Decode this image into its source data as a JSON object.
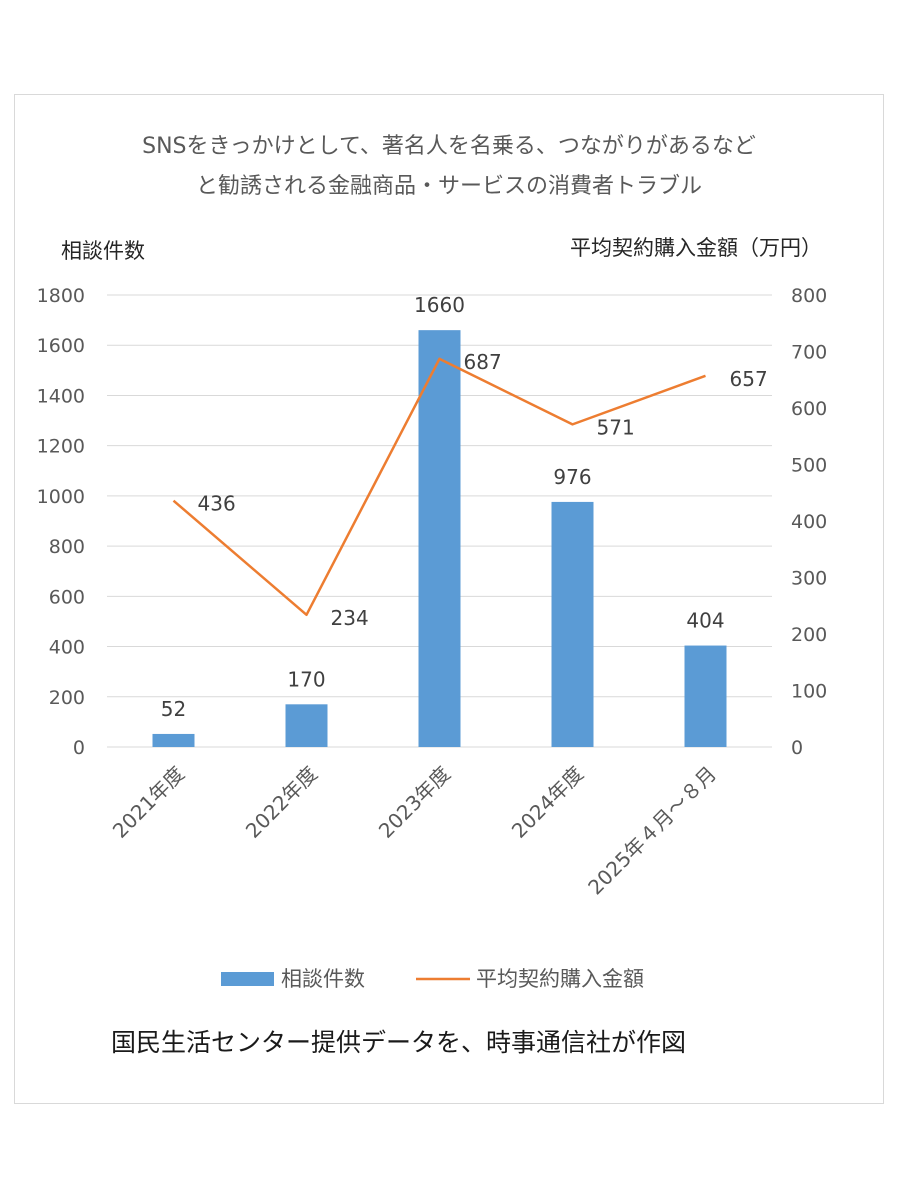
{
  "chart_data": {
    "type": "bar",
    "title": [
      "SNSをきっかけとして、著名人を名乗る、つながりがあるなど",
      "と勧誘される金融商品・サービスの消費者トラブル"
    ],
    "ylabel": "相談件数",
    "y2label": "平均契約購入金額（万円）",
    "categories": [
      "2021年度",
      "2022年度",
      "2023年度",
      "2024年度",
      "2025年４月～８月"
    ],
    "ylim": [
      0,
      1800
    ],
    "y2lim": [
      0,
      800
    ],
    "yticks": [
      0,
      200,
      400,
      600,
      800,
      1000,
      1200,
      1400,
      1600,
      1800
    ],
    "y2ticks": [
      0,
      100,
      200,
      300,
      400,
      500,
      600,
      700,
      800
    ],
    "grid": true,
    "legend_position": "bottom",
    "series": [
      {
        "name": "相談件数",
        "type": "bar",
        "axis": "left",
        "color": "#5b9bd5",
        "values": [
          52,
          170,
          1660,
          976,
          404
        ]
      },
      {
        "name": "平均契約購入金額",
        "type": "line",
        "axis": "right",
        "color": "#ed7d31",
        "values": [
          436,
          234,
          687,
          571,
          657
        ]
      }
    ],
    "source": "国民生活センター提供データを、時事通信社が作図"
  }
}
